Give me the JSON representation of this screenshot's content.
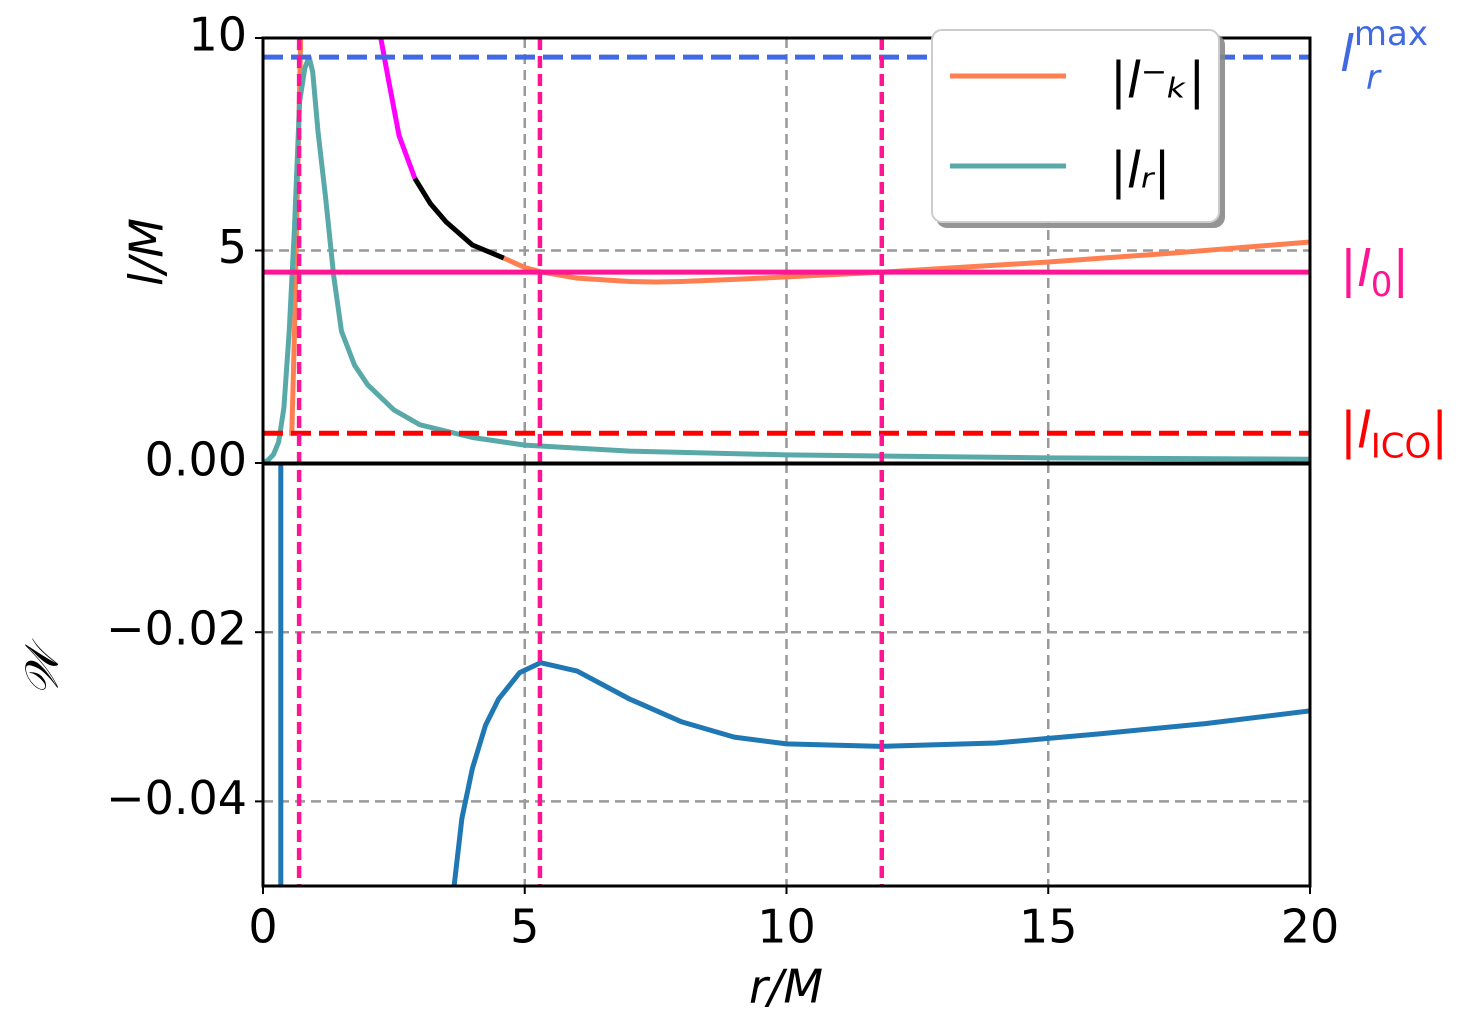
{
  "chart_data": [
    {
      "type": "line",
      "ylabel": "l/M",
      "xlim": [
        0,
        20
      ],
      "ylim": [
        0,
        10
      ],
      "yticks": [
        5,
        10
      ],
      "grid": true,
      "legend": "upper right",
      "series": [
        {
          "name": "|l⁻ₖ|",
          "color": "#ff7f50",
          "x": [
            0.5,
            0.55,
            0.6,
            0.65,
            0.72,
            2,
            4.6,
            5,
            5.3,
            6,
            7,
            7.5,
            8,
            9,
            10,
            11.8,
            13,
            15,
            17.5,
            20
          ],
          "values": [
            0.7,
            0.7,
            3,
            6,
            10,
            null,
            4.82,
            4.6,
            4.5,
            4.35,
            4.27,
            4.26,
            4.27,
            4.32,
            4.38,
            4.49,
            4.58,
            4.73,
            4.95,
            5.2
          ]
        },
        {
          "name": "|lᵣ|",
          "color": "#5aa9a9",
          "x": [
            0,
            0.1,
            0.2,
            0.3,
            0.4,
            0.5,
            0.6,
            0.7,
            0.8,
            0.88,
            0.95,
            1.05,
            1.2,
            1.35,
            1.5,
            1.75,
            2,
            2.5,
            3,
            4,
            5,
            7,
            10,
            15,
            20
          ],
          "values": [
            0,
            0.07,
            0.2,
            0.5,
            1.3,
            3.1,
            5.5,
            8.5,
            9.3,
            9.55,
            9.2,
            7.8,
            6.2,
            4.4,
            3.1,
            2.3,
            1.84,
            1.25,
            0.9,
            0.6,
            0.42,
            0.28,
            0.19,
            0.12,
            0.09
          ]
        },
        {
          "color": "#000000",
          "x": [
            2.9,
            3.2,
            3.5,
            4,
            4.6
          ],
          "values": [
            6.7,
            6.1,
            5.67,
            5.13,
            4.82
          ]
        },
        {
          "color": "#ff00ff",
          "x": [
            2.25,
            2.4,
            2.6,
            2.9
          ],
          "values": [
            10,
            9,
            7.7,
            6.7
          ]
        }
      ],
      "hlines": [
        {
          "value": 9.55,
          "color": "#4169e1",
          "dashed": true,
          "label": [
            {
              "t": "l",
              "i": true
            },
            {
              "t": "max",
              "sup": true
            },
            {
              "t": "r",
              "sub": true,
              "i": true
            }
          ]
        },
        {
          "value": 4.49,
          "color": "#ff1493",
          "dashed": false,
          "label": [
            {
              "t": "|"
            },
            {
              "t": "l",
              "i": true
            },
            {
              "t": "0",
              "sub": true
            },
            {
              "t": "|"
            }
          ]
        },
        {
          "value": 0.7,
          "color": "#ff0000",
          "dashed": true,
          "label": [
            {
              "t": "|"
            },
            {
              "t": "l",
              "i": true
            },
            {
              "t": "ICO",
              "sub": true
            },
            {
              "t": "|"
            }
          ]
        }
      ],
      "vlines": [
        0.69,
        5.29,
        11.82
      ],
      "vline_color": "#ff1493"
    },
    {
      "type": "line",
      "ylabel": "𝒲",
      "xlabel": "r/M",
      "xlim": [
        0,
        20
      ],
      "xticks": [
        0,
        5,
        10,
        15,
        20
      ],
      "ylim": [
        -0.05,
        0
      ],
      "yticks": [
        {
          "value": 0,
          "label": "0.00"
        },
        {
          "value": -0.02,
          "label": "−0.02"
        },
        {
          "value": -0.04,
          "label": "−0.04"
        }
      ],
      "grid": true,
      "series": [
        {
          "color": "#1f77b4",
          "x": [
            0.34,
            0.34,
            2,
            3.65,
            3.8,
            4,
            4.25,
            4.5,
            4.9,
            5.3,
            6,
            7,
            8,
            9,
            10,
            11.8,
            14,
            16,
            18,
            20
          ],
          "values": [
            0,
            -0.05,
            null,
            -0.05,
            -0.042,
            -0.0361,
            -0.031,
            -0.0279,
            -0.0248,
            -0.0236,
            -0.0246,
            -0.0279,
            -0.0306,
            -0.0324,
            -0.0332,
            -0.0335,
            -0.0331,
            -0.032,
            -0.0308,
            -0.0293
          ]
        }
      ],
      "hlines": [
        {
          "value": 0,
          "color": "#000000",
          "dashed": false
        }
      ]
    }
  ]
}
